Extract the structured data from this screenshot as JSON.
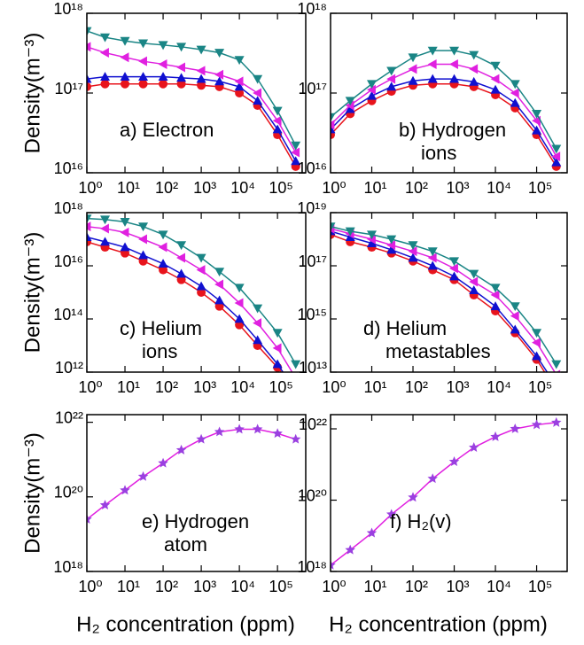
{
  "chart_data": [
    {
      "type": "line",
      "xscale": "log",
      "yscale": "log",
      "ylabel": "Density(m⁻³)",
      "annotation": [
        "a) Electron"
      ],
      "x": [
        1,
        3,
        10,
        30,
        100,
        300,
        1000,
        3000,
        10000,
        30000,
        100000,
        300000
      ],
      "xlim": [
        1,
        550000
      ],
      "ylim": [
        1e+16,
        1e+18
      ],
      "xticks": [
        {
          "value": 1,
          "label": "10⁰"
        },
        {
          "value": 10,
          "label": "10¹"
        },
        {
          "value": 100,
          "label": "10²"
        },
        {
          "value": 1000,
          "label": "10³"
        },
        {
          "value": 10000,
          "label": "10⁴"
        },
        {
          "value": 100000,
          "label": "10⁵"
        }
      ],
      "yticks": [
        {
          "value": 1e+16,
          "label": "10¹⁶"
        },
        {
          "value": 1e+17,
          "label": "10¹⁷"
        },
        {
          "value": 1e+18,
          "label": "10¹⁸"
        }
      ],
      "series": [
        {
          "color": "#e8141c",
          "marker": "circle",
          "values": [
            1.2e+17,
            1.3e+17,
            1.3e+17,
            1.3e+17,
            1.3e+17,
            1.3e+17,
            1.25e+17,
            1.2e+17,
            1e+17,
            7e+16,
            3e+16,
            1.2e+16
          ]
        },
        {
          "color": "#1010d0",
          "marker": "triangle-up",
          "values": [
            1.5e+17,
            1.6e+17,
            1.6e+17,
            1.6e+17,
            1.6e+17,
            1.55e+17,
            1.5e+17,
            1.4e+17,
            1.2e+17,
            8e+16,
            3.5e+16,
            1.4e+16
          ]
        },
        {
          "color": "#e020e0",
          "marker": "triangle-left",
          "values": [
            3.8e+17,
            3.2e+17,
            2.8e+17,
            2.5e+17,
            2.3e+17,
            2.1e+17,
            1.9e+17,
            1.7e+17,
            1.4e+17,
            1e+17,
            4.5e+16,
            1.8e+16
          ]
        },
        {
          "color": "#1a8585",
          "marker": "triangle-down",
          "values": [
            6e+17,
            5e+17,
            4.5e+17,
            4.2e+17,
            4e+17,
            3.8e+17,
            3.5e+17,
            3.2e+17,
            2.6e+17,
            1.5e+17,
            6e+16,
            2.2e+16
          ]
        }
      ]
    },
    {
      "type": "line",
      "xscale": "log",
      "yscale": "log",
      "annotation": [
        "b) Hydrogen",
        "ions"
      ],
      "x": [
        1,
        3,
        10,
        30,
        100,
        300,
        1000,
        3000,
        10000,
        30000,
        100000,
        300000
      ],
      "xlim": [
        1,
        550000
      ],
      "ylim": [
        1e+16,
        1e+18
      ],
      "xticks": [
        {
          "value": 1,
          "label": "10⁰"
        },
        {
          "value": 10,
          "label": "10¹"
        },
        {
          "value": 100,
          "label": "10²"
        },
        {
          "value": 1000,
          "label": "10³"
        },
        {
          "value": 10000,
          "label": "10⁴"
        },
        {
          "value": 100000,
          "label": "10⁵"
        }
      ],
      "yticks": [
        {
          "value": 1e+16,
          "label": "10¹⁶"
        },
        {
          "value": 1e+17,
          "label": "10¹⁷"
        },
        {
          "value": 1e+18,
          "label": "10¹⁸"
        }
      ],
      "series": [
        {
          "color": "#e8141c",
          "marker": "circle",
          "values": [
            3e+16,
            5.5e+16,
            8e+16,
            1.05e+17,
            1.25e+17,
            1.3e+17,
            1.3e+17,
            1.2e+17,
            9.5e+16,
            6.5e+16,
            3e+16,
            1.2e+16
          ]
        },
        {
          "color": "#1010d0",
          "marker": "triangle-up",
          "values": [
            3.5e+16,
            6.3e+16,
            9.2e+16,
            1.2e+17,
            1.42e+17,
            1.5e+17,
            1.5e+17,
            1.38e+17,
            1.1e+17,
            7.5e+16,
            3.4e+16,
            1.35e+16
          ]
        },
        {
          "color": "#e020e0",
          "marker": "triangle-left",
          "values": [
            4e+16,
            7e+16,
            1.1e+17,
            1.5e+17,
            2e+17,
            2.3e+17,
            2.3e+17,
            2e+17,
            1.5e+17,
            1e+17,
            4.5e+16,
            1.6e+16
          ]
        },
        {
          "color": "#1a8585",
          "marker": "triangle-down",
          "values": [
            5e+16,
            8e+16,
            1.3e+17,
            1.9e+17,
            2.8e+17,
            3.4e+17,
            3.4e+17,
            3e+17,
            2.2e+17,
            1.3e+17,
            5.5e+16,
            2e+16
          ]
        }
      ]
    },
    {
      "type": "line",
      "xscale": "log",
      "yscale": "log",
      "ylabel": "Density(m⁻³)",
      "annotation": [
        "c) Helium",
        "ions"
      ],
      "x": [
        1,
        3,
        10,
        30,
        100,
        300,
        1000,
        3000,
        10000,
        30000,
        100000,
        300000
      ],
      "xlim": [
        1,
        550000
      ],
      "ylim": [
        1000000000000.0,
        1e+18
      ],
      "xticks": [
        {
          "value": 1,
          "label": "10⁰"
        },
        {
          "value": 10,
          "label": "10¹"
        },
        {
          "value": 100,
          "label": "10²"
        },
        {
          "value": 1000,
          "label": "10³"
        },
        {
          "value": 10000,
          "label": "10⁴"
        },
        {
          "value": 100000,
          "label": "10⁵"
        }
      ],
      "yticks": [
        {
          "value": 1000000000000.0,
          "label": "10¹²"
        },
        {
          "value": 100000000000000.0,
          "label": "10¹⁴"
        },
        {
          "value": 1e+16,
          "label": "10¹⁶"
        },
        {
          "value": 1e+18,
          "label": "10¹⁸"
        }
      ],
      "series": [
        {
          "color": "#e8141c",
          "marker": "circle",
          "values": [
            8e+16,
            5e+16,
            3e+16,
            1.5e+16,
            7000000000000000.0,
            3000000000000000.0,
            1000000000000000.0,
            300000000000000.0,
            60000000000000.0,
            10000000000000.0,
            1500000000000.0,
            200000000000.0
          ]
        },
        {
          "color": "#1010d0",
          "marker": "triangle-up",
          "values": [
            1.2e+17,
            8e+16,
            5e+16,
            2.5e+16,
            1.2e+16,
            5000000000000000.0,
            1700000000000000.0,
            500000000000000.0,
            100000000000000.0,
            16000000000000.0,
            2000000000000.0,
            200000000000.0
          ]
        },
        {
          "color": "#e020e0",
          "marker": "triangle-left",
          "values": [
            3e+17,
            2.5e+17,
            1.8e+17,
            1e+17,
            5e+16,
            2e+16,
            7000000000000000.0,
            2000000000000000.0,
            400000000000000.0,
            70000000000000.0,
            8000000000000.0,
            600000000000.0
          ]
        },
        {
          "color": "#1a8585",
          "marker": "triangle-down",
          "values": [
            6e+17,
            5.5e+17,
            4.5e+17,
            3e+17,
            1.5e+17,
            6e+16,
            2e+16,
            6000000000000000.0,
            1500000000000000.0,
            250000000000000.0,
            30000000000000.0,
            2000000000000.0
          ]
        }
      ]
    },
    {
      "type": "line",
      "xscale": "log",
      "yscale": "log",
      "annotation": [
        "d) Helium",
        "metastables"
      ],
      "x": [
        1,
        3,
        10,
        30,
        100,
        300,
        1000,
        3000,
        10000,
        30000,
        100000,
        300000
      ],
      "xlim": [
        1,
        550000
      ],
      "ylim": [
        10000000000000.0,
        1e+19
      ],
      "xticks": [
        {
          "value": 1,
          "label": "10⁰"
        },
        {
          "value": 10,
          "label": "10¹"
        },
        {
          "value": 100,
          "label": "10²"
        },
        {
          "value": 1000,
          "label": "10³"
        },
        {
          "value": 10000,
          "label": "10⁴"
        },
        {
          "value": 100000,
          "label": "10⁵"
        }
      ],
      "yticks": [
        {
          "value": 10000000000000.0,
          "label": "10¹³"
        },
        {
          "value": 1000000000000000.0,
          "label": "10¹⁵"
        },
        {
          "value": 1e+17,
          "label": "10¹⁷"
        },
        {
          "value": 1e+19,
          "label": "10¹⁹"
        }
      ],
      "series": [
        {
          "color": "#e8141c",
          "marker": "circle",
          "values": [
            1.5e+18,
            8e+17,
            5e+17,
            3e+17,
            1.5e+17,
            7e+16,
            3e+16,
            8000000000000000.0,
            2000000000000000.0,
            300000000000000.0,
            30000000000000.0,
            2000000000000.0
          ]
        },
        {
          "color": "#1010d0",
          "marker": "triangle-up",
          "values": [
            2e+18,
            1.2e+18,
            7e+17,
            4e+17,
            2e+17,
            1e+17,
            4e+16,
            1.2e+16,
            3000000000000000.0,
            400000000000000.0,
            40000000000000.0,
            3000000000000.0
          ]
        },
        {
          "color": "#e020e0",
          "marker": "triangle-left",
          "values": [
            2.5e+18,
            1.6e+18,
            1e+18,
            6e+17,
            3.5e+17,
            2e+17,
            8e+16,
            2.5e+16,
            8000000000000000.0,
            1300000000000000.0,
            130000000000000.0,
            8000000000000.0
          ]
        },
        {
          "color": "#1a8585",
          "marker": "triangle-down",
          "values": [
            3e+18,
            2e+18,
            1.5e+18,
            1e+18,
            6e+17,
            3.5e+17,
            1.5e+17,
            5e+16,
            1.5e+16,
            3000000000000000.0,
            300000000000000.0,
            20000000000000.0
          ]
        }
      ]
    },
    {
      "type": "line",
      "xscale": "log",
      "yscale": "log",
      "ylabel": "Density(m⁻³)",
      "xlabel": "H₂ concentration (ppm)",
      "annotation": [
        "e) Hydrogen",
        "atom"
      ],
      "x": [
        1,
        3,
        10,
        30,
        100,
        300,
        1000,
        3000,
        10000,
        30000,
        100000,
        300000
      ],
      "xlim": [
        1,
        550000
      ],
      "ylim": [
        1e+18,
        1.6e+22
      ],
      "xticks": [
        {
          "value": 1,
          "label": "10⁰"
        },
        {
          "value": 10,
          "label": "10¹"
        },
        {
          "value": 100,
          "label": "10²"
        },
        {
          "value": 1000,
          "label": "10³"
        },
        {
          "value": 10000,
          "label": "10⁴"
        },
        {
          "value": 100000,
          "label": "10⁵"
        }
      ],
      "yticks": [
        {
          "value": 1e+18,
          "label": "10¹⁸"
        },
        {
          "value": 1e+20,
          "label": "10²⁰"
        },
        {
          "value": 1e+22,
          "label": "10²²"
        }
      ],
      "series": [
        {
          "color": "#e020e0",
          "marker": "star",
          "values": [
            2.5e+19,
            6e+19,
            1.5e+20,
            3.5e+20,
            8e+20,
            1.8e+21,
            3.5e+21,
            5.5e+21,
            6.5e+21,
            6.5e+21,
            5e+21,
            3.5e+21
          ]
        }
      ]
    },
    {
      "type": "line",
      "xscale": "log",
      "yscale": "log",
      "xlabel": "H₂ concentration (ppm)",
      "annotation": [
        "f) H₂(v)"
      ],
      "x": [
        1,
        3,
        10,
        30,
        100,
        300,
        1000,
        3000,
        10000,
        30000,
        100000,
        300000
      ],
      "xlim": [
        1,
        550000
      ],
      "ylim": [
        1e+18,
        2.5e+22
      ],
      "xticks": [
        {
          "value": 1,
          "label": "10⁰"
        },
        {
          "value": 10,
          "label": "10¹"
        },
        {
          "value": 100,
          "label": "10²"
        },
        {
          "value": 1000,
          "label": "10³"
        },
        {
          "value": 10000,
          "label": "10⁴"
        },
        {
          "value": 100000,
          "label": "10⁵"
        }
      ],
      "yticks": [
        {
          "value": 1e+18,
          "label": "10¹⁸"
        },
        {
          "value": 1e+20,
          "label": "10²⁰"
        },
        {
          "value": 1e+22,
          "label": "10²²"
        }
      ],
      "series": [
        {
          "color": "#e020e0",
          "marker": "star",
          "values": [
            1.5e+18,
            4e+18,
            1.2e+19,
            4e+19,
            1.2e+20,
            4e+20,
            1.2e+21,
            3e+21,
            6e+21,
            1e+22,
            1.3e+22,
            1.5e+22
          ]
        }
      ]
    }
  ]
}
